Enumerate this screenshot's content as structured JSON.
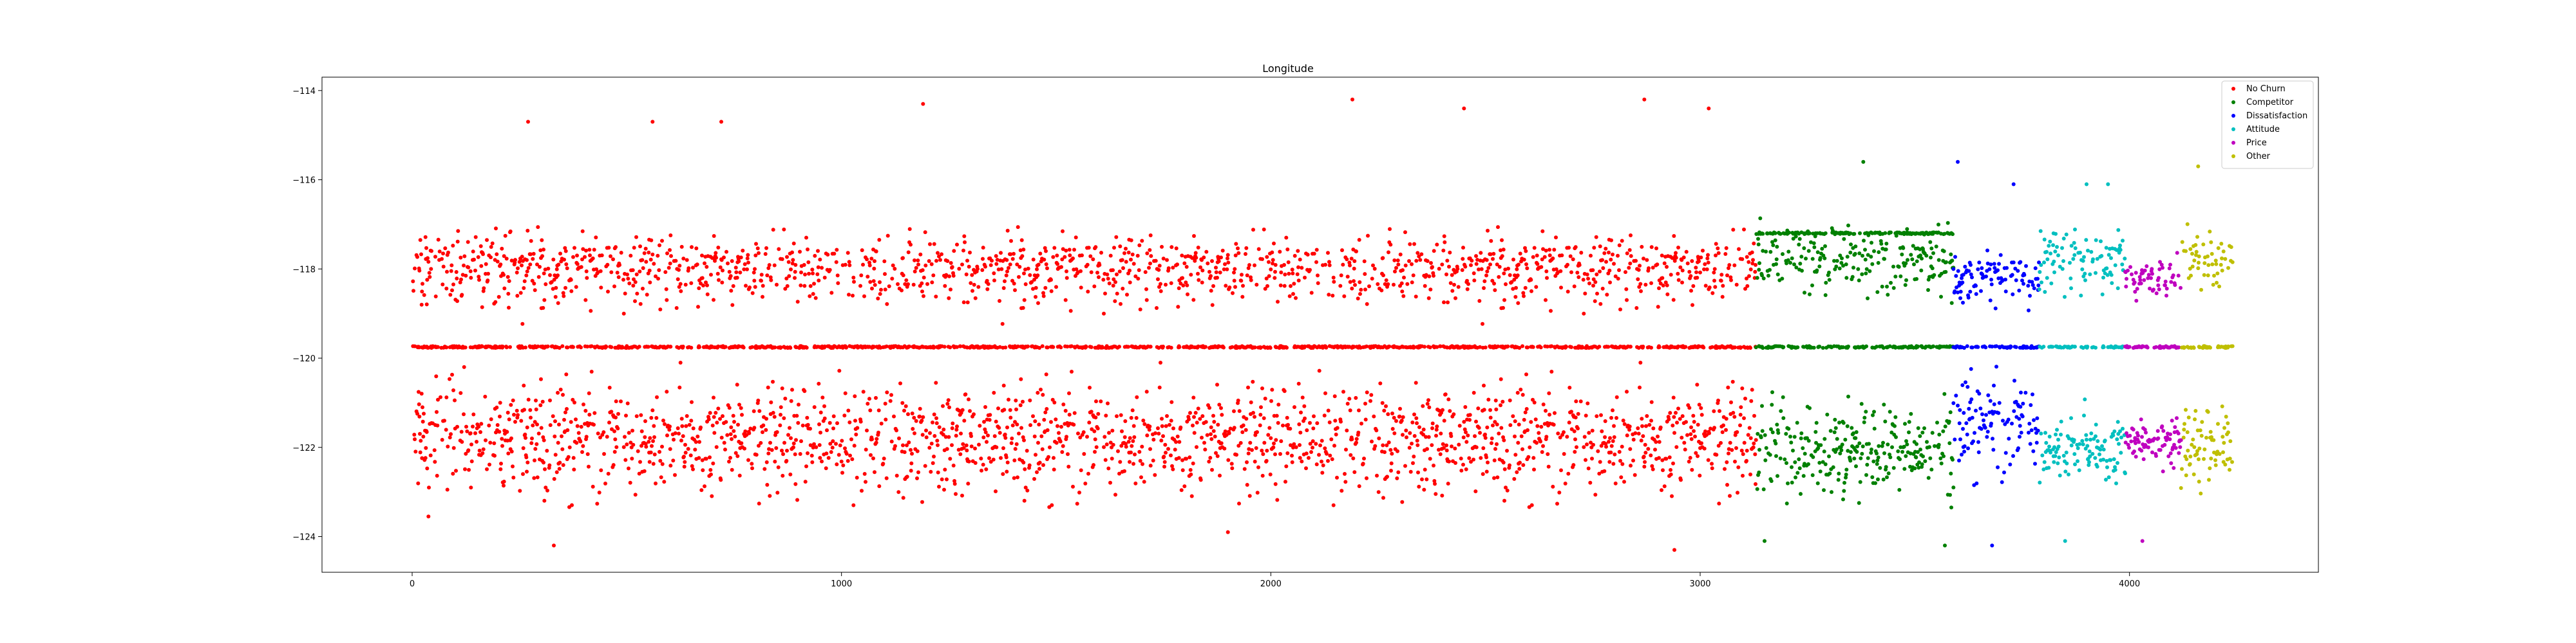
{
  "chart_data": {
    "type": "scatter",
    "title": "Longitude",
    "xlabel": "",
    "ylabel": "",
    "xlim": [
      -210,
      4440
    ],
    "ylim": [
      -124.8,
      -113.7
    ],
    "xticks": [
      0,
      1000,
      2000,
      3000,
      4000
    ],
    "yticks": [
      -114,
      -116,
      -118,
      -120,
      -122,
      -124
    ],
    "legend_position": "top-right",
    "grid": false,
    "series": [
      {
        "name": "No Churn",
        "color": "#ff0000",
        "x_range": [
          0,
          3130
        ],
        "centroid_lines": [
          -119.75
        ],
        "upper_band": [
          -118.0,
          0.55
        ],
        "lower_band": [
          -121.8,
          0.8
        ],
        "notable_points": [
          [
            270,
            -114.7
          ],
          [
            560,
            -114.7
          ],
          [
            720,
            -114.7
          ],
          [
            1190,
            -114.3
          ],
          [
            2190,
            -114.2
          ],
          [
            2450,
            -114.4
          ],
          [
            2870,
            -114.2
          ],
          [
            3020,
            -114.4
          ],
          [
            1900,
            -123.9
          ],
          [
            2940,
            -124.3
          ],
          [
            330,
            -124.2
          ]
        ]
      },
      {
        "name": "Competitor",
        "color": "#008000",
        "x_range": [
          3130,
          3590
        ],
        "centroid_lines": [
          -119.75,
          -117.2
        ],
        "upper_band": [
          -117.8,
          0.5
        ],
        "lower_band": [
          -122.0,
          0.7
        ],
        "notable_points": [
          [
            3380,
            -115.6
          ],
          [
            3570,
            -124.2
          ],
          [
            3150,
            -124.1
          ]
        ]
      },
      {
        "name": "Dissatisfaction",
        "color": "#0000ff",
        "x_range": [
          3590,
          3790
        ],
        "centroid_lines": [
          -119.75
        ],
        "upper_band": [
          -118.2,
          0.4
        ],
        "lower_band": [
          -121.5,
          0.7
        ],
        "notable_points": [
          [
            3600,
            -115.6
          ],
          [
            3730,
            -116.1
          ],
          [
            3680,
            -124.2
          ]
        ]
      },
      {
        "name": "Attitude",
        "color": "#00bfbf",
        "x_range": [
          3790,
          3990
        ],
        "centroid_lines": [
          -119.75
        ],
        "upper_band": [
          -117.8,
          0.5
        ],
        "lower_band": [
          -122.0,
          0.5
        ],
        "notable_points": [
          [
            3900,
            -116.1
          ],
          [
            3950,
            -116.1
          ],
          [
            3850,
            -124.1
          ]
        ]
      },
      {
        "name": "Price",
        "color": "#bf00bf",
        "x_range": [
          3990,
          4120
        ],
        "centroid_lines": [
          -119.75
        ],
        "upper_band": [
          -118.2,
          0.35
        ],
        "lower_band": [
          -121.9,
          0.35
        ],
        "notable_points": [
          [
            4030,
            -124.1
          ]
        ]
      },
      {
        "name": "Other",
        "color": "#bfbf00",
        "x_range": [
          4120,
          4240
        ],
        "centroid_lines": [
          -119.75
        ],
        "upper_band": [
          -117.8,
          0.5
        ],
        "lower_band": [
          -122.0,
          0.6
        ],
        "notable_points": [
          [
            4160,
            -115.7
          ]
        ]
      }
    ]
  }
}
